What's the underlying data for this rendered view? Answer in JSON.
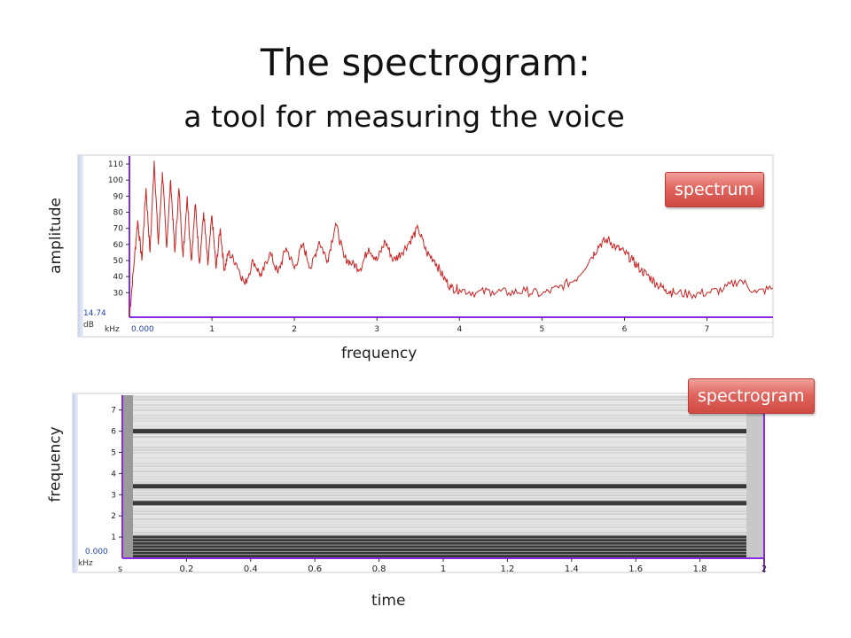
{
  "slide": {
    "title": "The spectrogram:",
    "subtitle": "a tool for measuring the voice"
  },
  "spectrum_panel": {
    "tag": "spectrum",
    "ylabel": "amplitude",
    "xlabel": "frequency",
    "unit_y": "dB",
    "unit_x": "kHz",
    "y_min_label": "14.74",
    "x_start_label": "0.000",
    "y_ticks": [
      "110",
      "100",
      "90",
      "80",
      "70",
      "60",
      "50",
      "40",
      "30"
    ],
    "x_ticks": [
      "1",
      "2",
      "3",
      "4",
      "5",
      "6",
      "7"
    ],
    "trace_color": "#cc2222"
  },
  "spectrogram_panel": {
    "tag": "spectrogram",
    "ylabel": "frequency",
    "xlabel": "time",
    "unit_y": "kHz",
    "unit_x": "s",
    "y_start_label": "0.000",
    "y_ticks": [
      "7",
      "6",
      "5",
      "4",
      "3",
      "2",
      "1"
    ],
    "x_ticks": [
      "0.2",
      "0.4",
      "0.6",
      "0.8",
      "1",
      "1.2",
      "1.4",
      "1.6",
      "1.8",
      "2"
    ]
  },
  "chart_data": [
    {
      "type": "line",
      "ylabel": "amplitude",
      "xlabel": "frequency",
      "x_unit": "kHz",
      "y_unit": "dB",
      "xlim": [
        0,
        7.8
      ],
      "ylim": [
        14.74,
        115
      ],
      "series": [
        {
          "x": [
            0.0,
            0.05,
            0.1,
            0.15,
            0.2,
            0.25,
            0.3,
            0.35,
            0.4,
            0.45,
            0.5,
            0.55,
            0.6,
            0.65,
            0.7,
            0.75,
            0.8,
            0.85,
            0.9,
            0.95,
            1.0,
            1.05,
            1.1,
            1.15,
            1.2,
            1.3,
            1.4,
            1.5,
            1.6,
            1.7,
            1.8,
            1.9,
            2.0,
            2.1,
            2.2,
            2.3,
            2.4,
            2.5,
            2.6,
            2.7,
            2.8,
            2.9,
            3.0,
            3.1,
            3.2,
            3.3,
            3.4,
            3.5,
            3.6,
            3.7,
            3.8,
            3.9,
            4.0,
            4.2,
            4.4,
            4.6,
            4.8,
            5.0,
            5.2,
            5.4,
            5.6,
            5.7,
            5.8,
            5.9,
            6.0,
            6.1,
            6.2,
            6.3,
            6.4,
            6.5,
            6.6,
            6.8,
            7.0,
            7.2,
            7.4,
            7.6,
            7.8
          ],
          "y": [
            15,
            45,
            75,
            50,
            95,
            55,
            112,
            60,
            105,
            58,
            100,
            55,
            95,
            52,
            90,
            50,
            85,
            48,
            80,
            47,
            78,
            45,
            70,
            44,
            55,
            48,
            35,
            50,
            40,
            55,
            42,
            58,
            45,
            60,
            45,
            62,
            50,
            73,
            52,
            48,
            45,
            58,
            50,
            62,
            50,
            55,
            62,
            70,
            55,
            50,
            40,
            33,
            32,
            30,
            31,
            30,
            31,
            29,
            33,
            38,
            52,
            60,
            63,
            58,
            55,
            50,
            44,
            40,
            35,
            32,
            30,
            29,
            30,
            32,
            38,
            30,
            33
          ]
        }
      ]
    },
    {
      "type": "heatmap",
      "ylabel": "frequency",
      "xlabel": "time",
      "x_unit": "s",
      "y_unit": "kHz",
      "xlim": [
        0,
        2
      ],
      "ylim": [
        0,
        7.7
      ],
      "dark_bands_khz": [
        0.1,
        0.25,
        0.4,
        0.55,
        0.7,
        0.85,
        1.0,
        2.6,
        3.4,
        6.0
      ]
    }
  ]
}
